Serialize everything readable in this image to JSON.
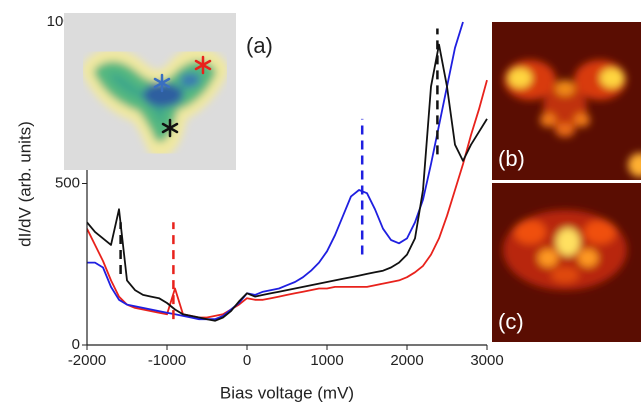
{
  "chart_data": {
    "type": "line",
    "xlabel": "Bias voltage (mV)",
    "ylabel": "dI/dV (arb. units)",
    "panel_labels": [
      "(a)",
      "(b)",
      "(c)"
    ],
    "xlim": [
      -2000,
      3000
    ],
    "xticks": [
      -2000,
      -1000,
      0,
      1000,
      2000,
      3000
    ],
    "ylim": [
      0,
      1000
    ],
    "yticks": [
      0,
      500,
      1000
    ],
    "x": [
      -2000,
      -1900,
      -1800,
      -1700,
      -1600,
      -1500,
      -1400,
      -1300,
      -1200,
      -1100,
      -1000,
      -900,
      -800,
      -700,
      -600,
      -500,
      -400,
      -300,
      -200,
      -100,
      0,
      100,
      200,
      300,
      400,
      500,
      600,
      700,
      800,
      900,
      1000,
      1100,
      1200,
      1300,
      1400,
      1500,
      1600,
      1700,
      1800,
      1900,
      2000,
      2100,
      2200,
      2300,
      2400,
      2500,
      2600,
      2700,
      2800,
      2900,
      3000
    ],
    "series": [
      {
        "color": "#e8221c",
        "values": [
          360,
          310,
          260,
          200,
          150,
          125,
          115,
          110,
          105,
          100,
          95,
          175,
          95,
          90,
          85,
          85,
          90,
          95,
          110,
          125,
          145,
          140,
          140,
          145,
          150,
          155,
          160,
          165,
          170,
          175,
          175,
          180,
          180,
          180,
          180,
          180,
          185,
          190,
          195,
          200,
          210,
          225,
          245,
          280,
          330,
          400,
          480,
          560,
          650,
          730,
          820
        ]
      },
      {
        "color": "#1f1fe0",
        "values": [
          255,
          255,
          240,
          180,
          140,
          125,
          120,
          115,
          110,
          105,
          100,
          95,
          90,
          85,
          80,
          80,
          80,
          90,
          110,
          130,
          160,
          155,
          165,
          170,
          175,
          185,
          195,
          210,
          230,
          255,
          290,
          340,
          400,
          460,
          480,
          470,
          420,
          360,
          325,
          315,
          330,
          380,
          450,
          560,
          680,
          800,
          920,
          1000,
          null,
          null,
          null
        ]
      },
      {
        "color": "#111111",
        "values": [
          380,
          350,
          330,
          310,
          420,
          200,
          170,
          155,
          150,
          145,
          130,
          110,
          95,
          90,
          85,
          80,
          75,
          85,
          105,
          135,
          160,
          150,
          155,
          160,
          165,
          170,
          175,
          180,
          185,
          190,
          195,
          200,
          205,
          210,
          215,
          220,
          225,
          230,
          240,
          255,
          280,
          330,
          480,
          800,
          930,
          800,
          620,
          570,
          620,
          660,
          700
        ]
      }
    ],
    "marker_lines": [
      {
        "x": -1580,
        "y": [
          220,
          380
        ],
        "color": "#111111"
      },
      {
        "x": -920,
        "y": [
          80,
          380
        ],
        "color": "#e8221c"
      },
      {
        "x": 1440,
        "y": [
          280,
          700
        ],
        "color": "#1f1fe0"
      },
      {
        "x": 2380,
        "y": [
          590,
          980
        ],
        "color": "#111111"
      }
    ]
  }
}
